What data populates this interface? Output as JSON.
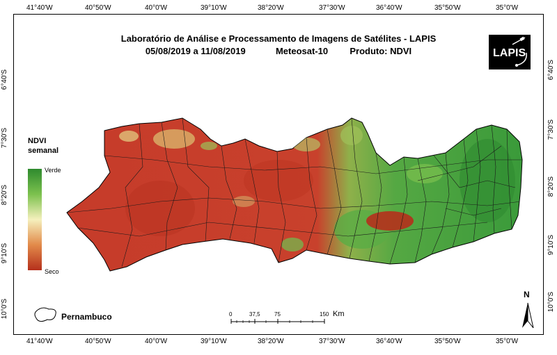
{
  "title": {
    "line1": "Laboratório de Análise e Processamento de Imagens de Satélites - LAPIS",
    "date_range": "05/08/2019  a  11/08/2019",
    "satellite": "Meteosat-10",
    "product": "Produto: NDVI"
  },
  "logo": {
    "text": "LAPIS"
  },
  "longitude_ticks": [
    "41°40'W",
    "40°50'W",
    "40°0'W",
    "39°10'W",
    "38°20'W",
    "37°30'W",
    "36°40'W",
    "35°50'W",
    "35°0'W"
  ],
  "latitude_ticks": [
    "6°40'S",
    "7°30'S",
    "8°20'S",
    "9°10'S",
    "10°0'S"
  ],
  "legend": {
    "title_line1": "NDVI",
    "title_line2": "semanal",
    "max_label": "Verde",
    "min_label": "Seco",
    "colors": [
      "#2e8a2e",
      "#7cc14e",
      "#f5f0bd",
      "#e28a4a",
      "#b5301c"
    ]
  },
  "inset": {
    "label": "Pernambuco"
  },
  "scale_bar": {
    "labels": [
      "0",
      "37,5",
      "75",
      "150"
    ],
    "unit": "Km"
  },
  "north_arrow": {
    "label": "N"
  },
  "map_colors": {
    "dry": "#c0392b",
    "dry_dark": "#a82a1e",
    "transition": "#d9b36a",
    "green": "#4aa63f",
    "green_dark": "#2f8a30"
  }
}
